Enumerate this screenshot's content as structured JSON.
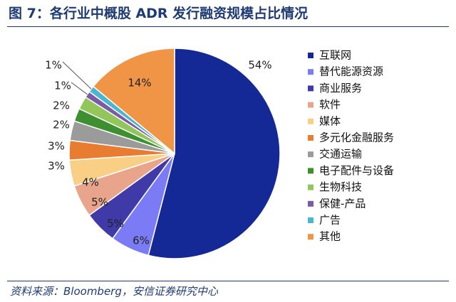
{
  "header": {
    "title": "图 7：各行业中概股 ADR 发行融资规模占比情况"
  },
  "footer": {
    "source": "资料来源：Bloomberg，安信证券研究中心"
  },
  "chart_data": {
    "type": "pie",
    "legend_position": "right",
    "slices": [
      {
        "label": "互联网",
        "value": 54,
        "value_label": "54%",
        "color": "#142896"
      },
      {
        "label": "替代能源资源",
        "value": 6,
        "value_label": "6%",
        "color": "#7b7cf5"
      },
      {
        "label": "商业服务",
        "value": 5,
        "value_label": "5%",
        "color": "#3f3aa8"
      },
      {
        "label": "软件",
        "value": 5,
        "value_label": "5%",
        "color": "#e8a58c"
      },
      {
        "label": "媒体",
        "value": 4,
        "value_label": "4%",
        "color": "#f8cf85"
      },
      {
        "label": "多元化金融服务",
        "value": 3,
        "value_label": "3%",
        "color": "#e87c31"
      },
      {
        "label": "交通运输",
        "value": 3,
        "value_label": "3%",
        "color": "#9b9b9b"
      },
      {
        "label": "电子配件与设备",
        "value": 2,
        "value_label": "2%",
        "color": "#3e8f2f"
      },
      {
        "label": "生物科技",
        "value": 2,
        "value_label": "2%",
        "color": "#93c65a"
      },
      {
        "label": "保健-产品",
        "value": 1,
        "value_label": "1%",
        "color": "#7b5aa8"
      },
      {
        "label": "广告",
        "value": 1,
        "value_label": "1%",
        "color": "#4bb6cf"
      },
      {
        "label": "其他",
        "value": 14,
        "value_label": "14%",
        "color": "#f09446"
      }
    ]
  }
}
